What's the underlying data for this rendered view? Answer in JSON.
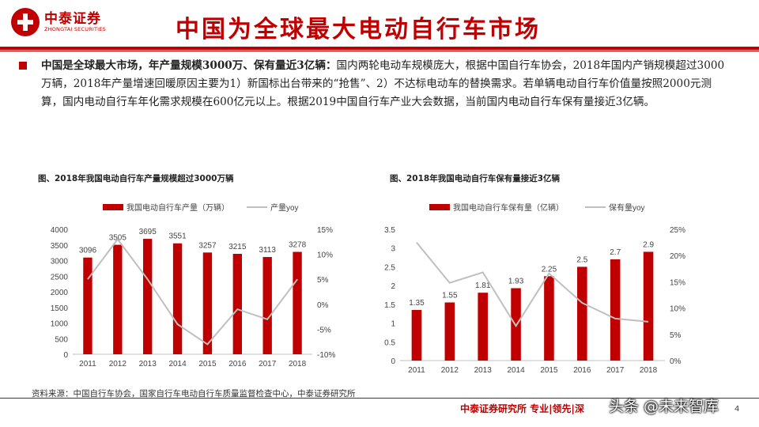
{
  "header": {
    "logo_cn": "中泰证券",
    "logo_en": "ZHONGTAI SECURITIES",
    "title": "中国为全球最大电动自行车市场",
    "brand_color": "#c00000"
  },
  "intro": {
    "lead": "中国是全球最大市场，年产量规模3000万、保有量近3亿辆：",
    "text": "国内两轮电动车规模庞大，根据中国自行车协会，2018年国内产销规模超过3000万辆，2018年产量增速回暖原因主要为1）新国标出台带来的“抢售”、2）不达标电动车的替换需求。若单辆电动自行车价值量按照2000元测算，国内电动自行车年化需求规模在600亿元以上。根据2019中国自行车产业大会数据，当前国内电动自行车保有量接近3亿辆。"
  },
  "chart_data": [
    {
      "type": "bar",
      "title": "图、2018年我国电动自行车产量规模超过3000万辆",
      "categories": [
        "2011",
        "2012",
        "2013",
        "2014",
        "2015",
        "2016",
        "2017",
        "2018"
      ],
      "series": [
        {
          "name": "我国电动自行车产量（万辆）",
          "type": "bar",
          "axis": "left",
          "color": "#c00000",
          "values": [
            3096,
            3505,
            3695,
            3551,
            3257,
            3215,
            3113,
            3278
          ]
        },
        {
          "name": "产量yoy",
          "type": "line",
          "axis": "right",
          "color": "#bfbfbf",
          "values": [
            0.05,
            0.13,
            0.05,
            -0.04,
            -0.08,
            -0.01,
            -0.03,
            0.05
          ]
        }
      ],
      "ylim": [
        0,
        4000
      ],
      "yticks": [
        "0",
        "500",
        "1000",
        "1500",
        "2000",
        "2500",
        "3000",
        "3500",
        "4000"
      ],
      "y2lim": [
        -0.1,
        0.15
      ],
      "y2ticks": [
        "-10%",
        "-5%",
        "0%",
        "5%",
        "10%",
        "15%"
      ],
      "legend": "top",
      "grid": false
    },
    {
      "type": "bar",
      "title": "图、2018年我国电动自行车保有量接近3亿辆",
      "categories": [
        "2011",
        "2012",
        "2013",
        "2014",
        "2015",
        "2016",
        "2017",
        "2018"
      ],
      "series": [
        {
          "name": "我国电动自行车保有量（亿辆）",
          "type": "bar",
          "axis": "left",
          "color": "#c00000",
          "values": [
            1.35,
            1.55,
            1.81,
            1.93,
            2.25,
            2.5,
            2.7,
            2.9
          ]
        },
        {
          "name": "保有量yoy",
          "type": "line",
          "axis": "right",
          "color": "#bfbfbf",
          "values": [
            0.225,
            0.148,
            0.168,
            0.066,
            0.166,
            0.11,
            0.08,
            0.074
          ]
        }
      ],
      "ylim": [
        0,
        3.5
      ],
      "yticks": [
        "0",
        "0.5",
        "1",
        "1.5",
        "2",
        "2.5",
        "3",
        "3.5"
      ],
      "y2lim": [
        0,
        0.25
      ],
      "y2ticks": [
        "0%",
        "5%",
        "10%",
        "15%",
        "20%",
        "25%"
      ],
      "legend": "top",
      "grid": false
    }
  ],
  "source": "资料来源：中国自行车协会，国家自行车电动自行车质量监督检查中心，中泰证券研究所",
  "footer": {
    "text": "中泰证券研究所 专业|领先|深",
    "watermark": "头条 @未来智库",
    "page": "4"
  }
}
